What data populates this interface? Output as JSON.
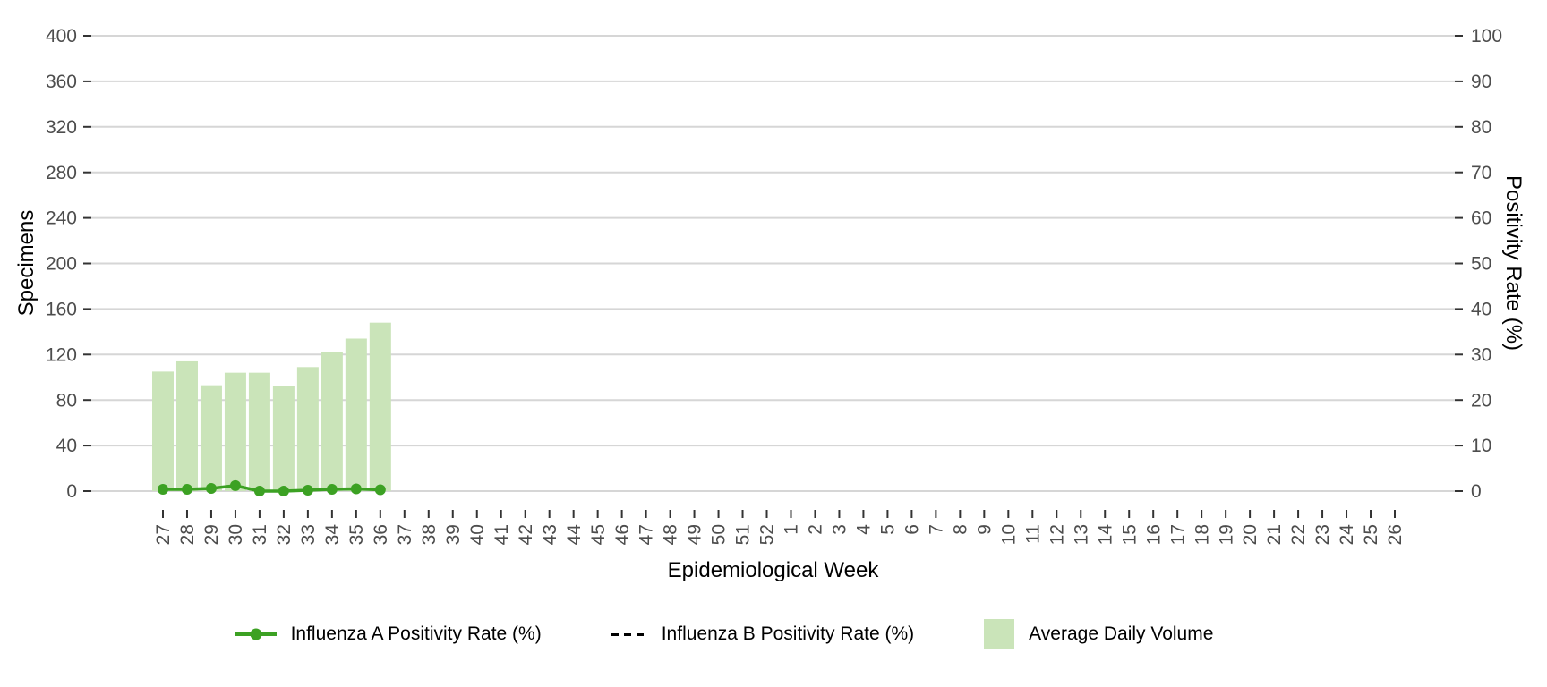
{
  "chart_data": {
    "type": "bar+line",
    "title": "",
    "x": {
      "label": "Epidemiological Week",
      "categories": [
        "27",
        "28",
        "29",
        "30",
        "31",
        "32",
        "33",
        "34",
        "35",
        "36",
        "37",
        "38",
        "39",
        "40",
        "41",
        "42",
        "43",
        "44",
        "45",
        "46",
        "47",
        "48",
        "49",
        "50",
        "51",
        "52",
        "1",
        "2",
        "3",
        "4",
        "5",
        "6",
        "7",
        "8",
        "9",
        "10",
        "11",
        "12",
        "13",
        "14",
        "15",
        "16",
        "17",
        "18",
        "19",
        "20",
        "21",
        "22",
        "23",
        "24",
        "25",
        "26"
      ]
    },
    "y_left": {
      "label": "Specimens",
      "range": [
        0,
        400
      ],
      "ticks": [
        0,
        40,
        80,
        120,
        160,
        200,
        240,
        280,
        320,
        360,
        400
      ]
    },
    "y_right": {
      "label": "Positivity Rate (%)",
      "range": [
        0,
        100
      ],
      "ticks": [
        0,
        10,
        20,
        30,
        40,
        50,
        60,
        70,
        80,
        90,
        100
      ]
    },
    "grid": "horizontal-only",
    "legend_position": "bottom",
    "series": [
      {
        "name": "Influenza A Positivity Rate (%)",
        "type": "line",
        "axis": "right",
        "color": "#3CA123",
        "marker": "circle",
        "line_style": "solid",
        "weeks": [
          "27",
          "28",
          "29",
          "30",
          "31",
          "32",
          "33",
          "34",
          "35",
          "36"
        ],
        "values": [
          0.4,
          0.4,
          0.6,
          1.2,
          0.0,
          0.0,
          0.2,
          0.4,
          0.5,
          0.3
        ]
      },
      {
        "name": "Influenza B Positivity Rate (%)",
        "type": "line",
        "axis": "right",
        "color": "#000000",
        "marker": "none",
        "line_style": "dashed",
        "weeks": [],
        "values": []
      },
      {
        "name": "Average Daily Volume",
        "type": "bar",
        "axis": "left",
        "color": "#CAE4B9",
        "weeks": [
          "27",
          "28",
          "29",
          "30",
          "31",
          "32",
          "33",
          "34",
          "35",
          "36"
        ],
        "values": [
          105,
          114,
          93,
          104,
          104,
          92,
          109,
          122,
          134,
          148
        ]
      }
    ],
    "style": {
      "background": "#ffffff",
      "grid_color": "#D6D6D6",
      "tick_color": "#333333",
      "tick_label_color": "#4D4D4D",
      "title_color": "#000000"
    }
  }
}
